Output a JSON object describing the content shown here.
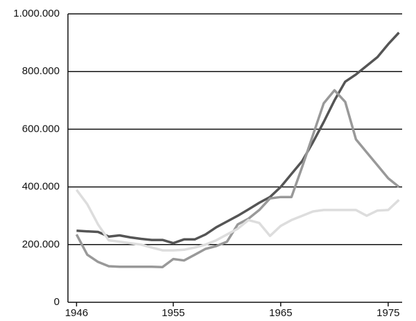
{
  "chart_data": {
    "type": "line",
    "x": [
      1946,
      1947,
      1948,
      1949,
      1950,
      1951,
      1952,
      1953,
      1954,
      1955,
      1956,
      1957,
      1958,
      1959,
      1960,
      1961,
      1962,
      1963,
      1964,
      1965,
      1966,
      1967,
      1968,
      1969,
      1970,
      1971,
      1972,
      1973,
      1974,
      1975,
      1976
    ],
    "series": [
      {
        "color": "#555555",
        "values": [
          248000,
          246000,
          244000,
          228000,
          232000,
          225000,
          220000,
          216000,
          216000,
          205000,
          218000,
          218000,
          235000,
          260000,
          280000,
          300000,
          322000,
          345000,
          365000,
          400000,
          445000,
          490000,
          555000,
          625000,
          700000,
          765000,
          790000,
          820000,
          850000,
          895000,
          935000
        ]
      },
      {
        "color": "#999999",
        "values": [
          235000,
          165000,
          140000,
          125000,
          123000,
          123000,
          123000,
          123000,
          122000,
          150000,
          145000,
          165000,
          185000,
          195000,
          210000,
          270000,
          290000,
          320000,
          360000,
          365000,
          365000,
          470000,
          580000,
          690000,
          735000,
          695000,
          565000,
          520000,
          475000,
          430000,
          400000
        ]
      },
      {
        "color": "#dddddd",
        "values": [
          390000,
          340000,
          270000,
          215000,
          210000,
          205000,
          200000,
          190000,
          180000,
          180000,
          182000,
          190000,
          200000,
          215000,
          235000,
          255000,
          285000,
          275000,
          230000,
          265000,
          285000,
          300000,
          315000,
          320000,
          320000,
          320000,
          320000,
          300000,
          318000,
          320000,
          355000
        ]
      }
    ],
    "xlim": [
      1945.2,
      1976.3
    ],
    "xticks": [
      1946,
      1955,
      1965,
      1975
    ],
    "ylim": [
      0,
      1000000
    ],
    "yticks": [
      0,
      {
        "value": 200000,
        "label": "200.000"
      },
      {
        "value": 400000,
        "label": "400.000"
      },
      {
        "value": 600000,
        "label": "600.000"
      },
      {
        "value": 800000,
        "label": "800.000"
      },
      {
        "value": 1000000,
        "label": "1.000.000"
      }
    ],
    "grid": true
  }
}
